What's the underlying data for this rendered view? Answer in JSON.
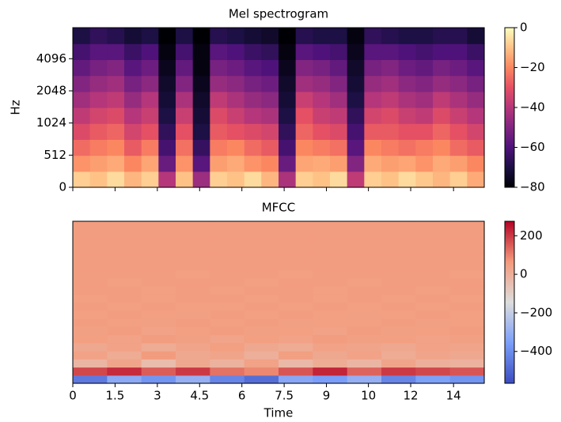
{
  "chart_data": [
    {
      "type": "heatmap",
      "title": "Mel spectrogram",
      "ylabel": "Hz",
      "cmap": "magma",
      "yscale": "symlog",
      "linthresh": 1024,
      "base": 2,
      "xlim": [
        0,
        14.6
      ],
      "ylim": [
        0,
        8000
      ],
      "yticks": [
        0,
        512,
        1024,
        2048,
        4096
      ],
      "zlim": [
        -80,
        0
      ],
      "zticks": [
        0,
        {
          "value": -20,
          "label": "−20"
        },
        {
          "value": -40,
          "label": "−40"
        },
        {
          "value": -60,
          "label": "−60"
        },
        {
          "value": -80,
          "label": "−80"
        }
      ],
      "z": [
        [
          -8,
          -10,
          -6,
          -12,
          -8,
          -40,
          -10,
          -45,
          -8,
          -10,
          -6,
          -12,
          -42,
          -8,
          -10,
          -6,
          -38,
          -8,
          -10,
          -6,
          -9,
          -12,
          -8,
          -14
        ],
        [
          -18,
          -16,
          -14,
          -20,
          -15,
          -55,
          -18,
          -58,
          -16,
          -14,
          -18,
          -20,
          -55,
          -15,
          -14,
          -16,
          -50,
          -14,
          -16,
          -15,
          -18,
          -14,
          -16,
          -20
        ],
        [
          -25,
          -22,
          -20,
          -28,
          -22,
          -62,
          -24,
          -65,
          -22,
          -20,
          -25,
          -28,
          -62,
          -20,
          -22,
          -24,
          -58,
          -20,
          -22,
          -24,
          -22,
          -20,
          -25,
          -28
        ],
        [
          -32,
          -28,
          -26,
          -34,
          -30,
          -66,
          -30,
          -70,
          -28,
          -30,
          -32,
          -34,
          -66,
          -26,
          -30,
          -32,
          -62,
          -28,
          -28,
          -30,
          -30,
          -26,
          -30,
          -34
        ],
        [
          -38,
          -34,
          -32,
          -40,
          -36,
          -70,
          -36,
          -72,
          -32,
          -36,
          -40,
          -42,
          -70,
          -30,
          -36,
          -38,
          -66,
          -34,
          -32,
          -36,
          -38,
          -32,
          -36,
          -40
        ],
        [
          -44,
          -40,
          -38,
          -46,
          -40,
          -72,
          -42,
          -74,
          -38,
          -42,
          -46,
          -48,
          -72,
          -36,
          -40,
          -44,
          -70,
          -40,
          -38,
          -42,
          -44,
          -38,
          -42,
          -46
        ],
        [
          -50,
          -46,
          -44,
          -52,
          -48,
          -74,
          -50,
          -76,
          -46,
          -48,
          -52,
          -54,
          -74,
          -44,
          -46,
          -50,
          -72,
          -46,
          -44,
          -48,
          -50,
          -46,
          -48,
          -52
        ],
        [
          -56,
          -52,
          -50,
          -58,
          -54,
          -76,
          -56,
          -78,
          -52,
          -54,
          -58,
          -60,
          -76,
          -50,
          -52,
          -56,
          -74,
          -52,
          -50,
          -54,
          -56,
          -52,
          -54,
          -58
        ],
        [
          -62,
          -58,
          -58,
          -64,
          -60,
          -78,
          -62,
          -78,
          -58,
          -60,
          -64,
          -66,
          -78,
          -58,
          -60,
          -62,
          -76,
          -58,
          -58,
          -60,
          -62,
          -60,
          -60,
          -64
        ],
        [
          -70,
          -66,
          -68,
          -72,
          -70,
          -80,
          -70,
          -80,
          -68,
          -70,
          -72,
          -74,
          -80,
          -68,
          -70,
          -70,
          -78,
          -66,
          -68,
          -70,
          -70,
          -68,
          -68,
          -72
        ]
      ]
    },
    {
      "type": "heatmap",
      "title": "MFCC",
      "xlabel": "Time",
      "cmap": "coolwarm",
      "xlim": [
        0,
        14.6
      ],
      "xticks": [
        0,
        1.5,
        3,
        4.5,
        6,
        7.5,
        9,
        {
          "value": 10.49,
          "label": "10"
        },
        {
          "value": 11.99,
          "label": "12"
        },
        {
          "value": 13.51,
          "label": "14"
        }
      ],
      "zlim": [
        -565,
        275
      ],
      "zticks": [
        200,
        0,
        {
          "value": -200,
          "label": "−200"
        },
        {
          "value": -400,
          "label": "−400"
        }
      ],
      "z": [
        [
          -450,
          -320,
          -380,
          -300,
          -420,
          -480,
          -330,
          -360,
          -300,
          -420,
          -350,
          -380
        ],
        [
          180,
          220,
          150,
          200,
          120,
          90,
          160,
          230,
          140,
          200,
          180,
          160
        ],
        [
          -20,
          30,
          -40,
          20,
          -10,
          40,
          -30,
          10,
          -20,
          30,
          0,
          -10
        ],
        [
          40,
          10,
          60,
          20,
          30,
          0,
          50,
          20,
          40,
          10,
          30,
          20
        ],
        [
          20,
          40,
          10,
          30,
          50,
          20,
          10,
          40,
          30,
          20,
          40,
          30
        ],
        [
          50,
          40,
          55,
          45,
          35,
          50,
          40,
          55,
          45,
          50,
          40,
          45
        ],
        [
          45,
          55,
          40,
          50,
          55,
          45,
          50,
          40,
          55,
          45,
          50,
          55
        ],
        [
          55,
          50,
          45,
          55,
          50,
          55,
          45,
          50,
          50,
          55,
          45,
          50
        ],
        [
          50,
          55,
          50,
          45,
          55,
          50,
          55,
          50,
          45,
          50,
          55,
          50
        ],
        [
          55,
          50,
          55,
          50,
          50,
          55,
          50,
          55,
          50,
          55,
          50,
          55
        ],
        [
          50,
          55,
          50,
          55,
          55,
          50,
          55,
          50,
          55,
          50,
          55,
          50
        ],
        [
          55,
          55,
          50,
          55,
          50,
          55,
          55,
          50,
          55,
          55,
          50,
          55
        ],
        [
          55,
          50,
          55,
          55,
          55,
          50,
          55,
          55,
          50,
          55,
          55,
          55
        ],
        [
          55,
          55,
          55,
          50,
          55,
          55,
          50,
          55,
          55,
          55,
          55,
          50
        ],
        [
          55,
          55,
          55,
          55,
          55,
          55,
          55,
          55,
          55,
          55,
          55,
          55
        ],
        [
          55,
          55,
          55,
          55,
          55,
          55,
          55,
          55,
          55,
          55,
          55,
          55
        ],
        [
          55,
          55,
          55,
          55,
          55,
          55,
          55,
          55,
          55,
          55,
          55,
          55
        ],
        [
          55,
          55,
          55,
          55,
          55,
          55,
          55,
          55,
          55,
          55,
          55,
          55
        ],
        [
          55,
          55,
          55,
          55,
          55,
          55,
          55,
          55,
          55,
          55,
          55,
          55
        ],
        [
          55,
          55,
          55,
          55,
          55,
          55,
          55,
          55,
          55,
          55,
          55,
          55
        ]
      ]
    }
  ]
}
